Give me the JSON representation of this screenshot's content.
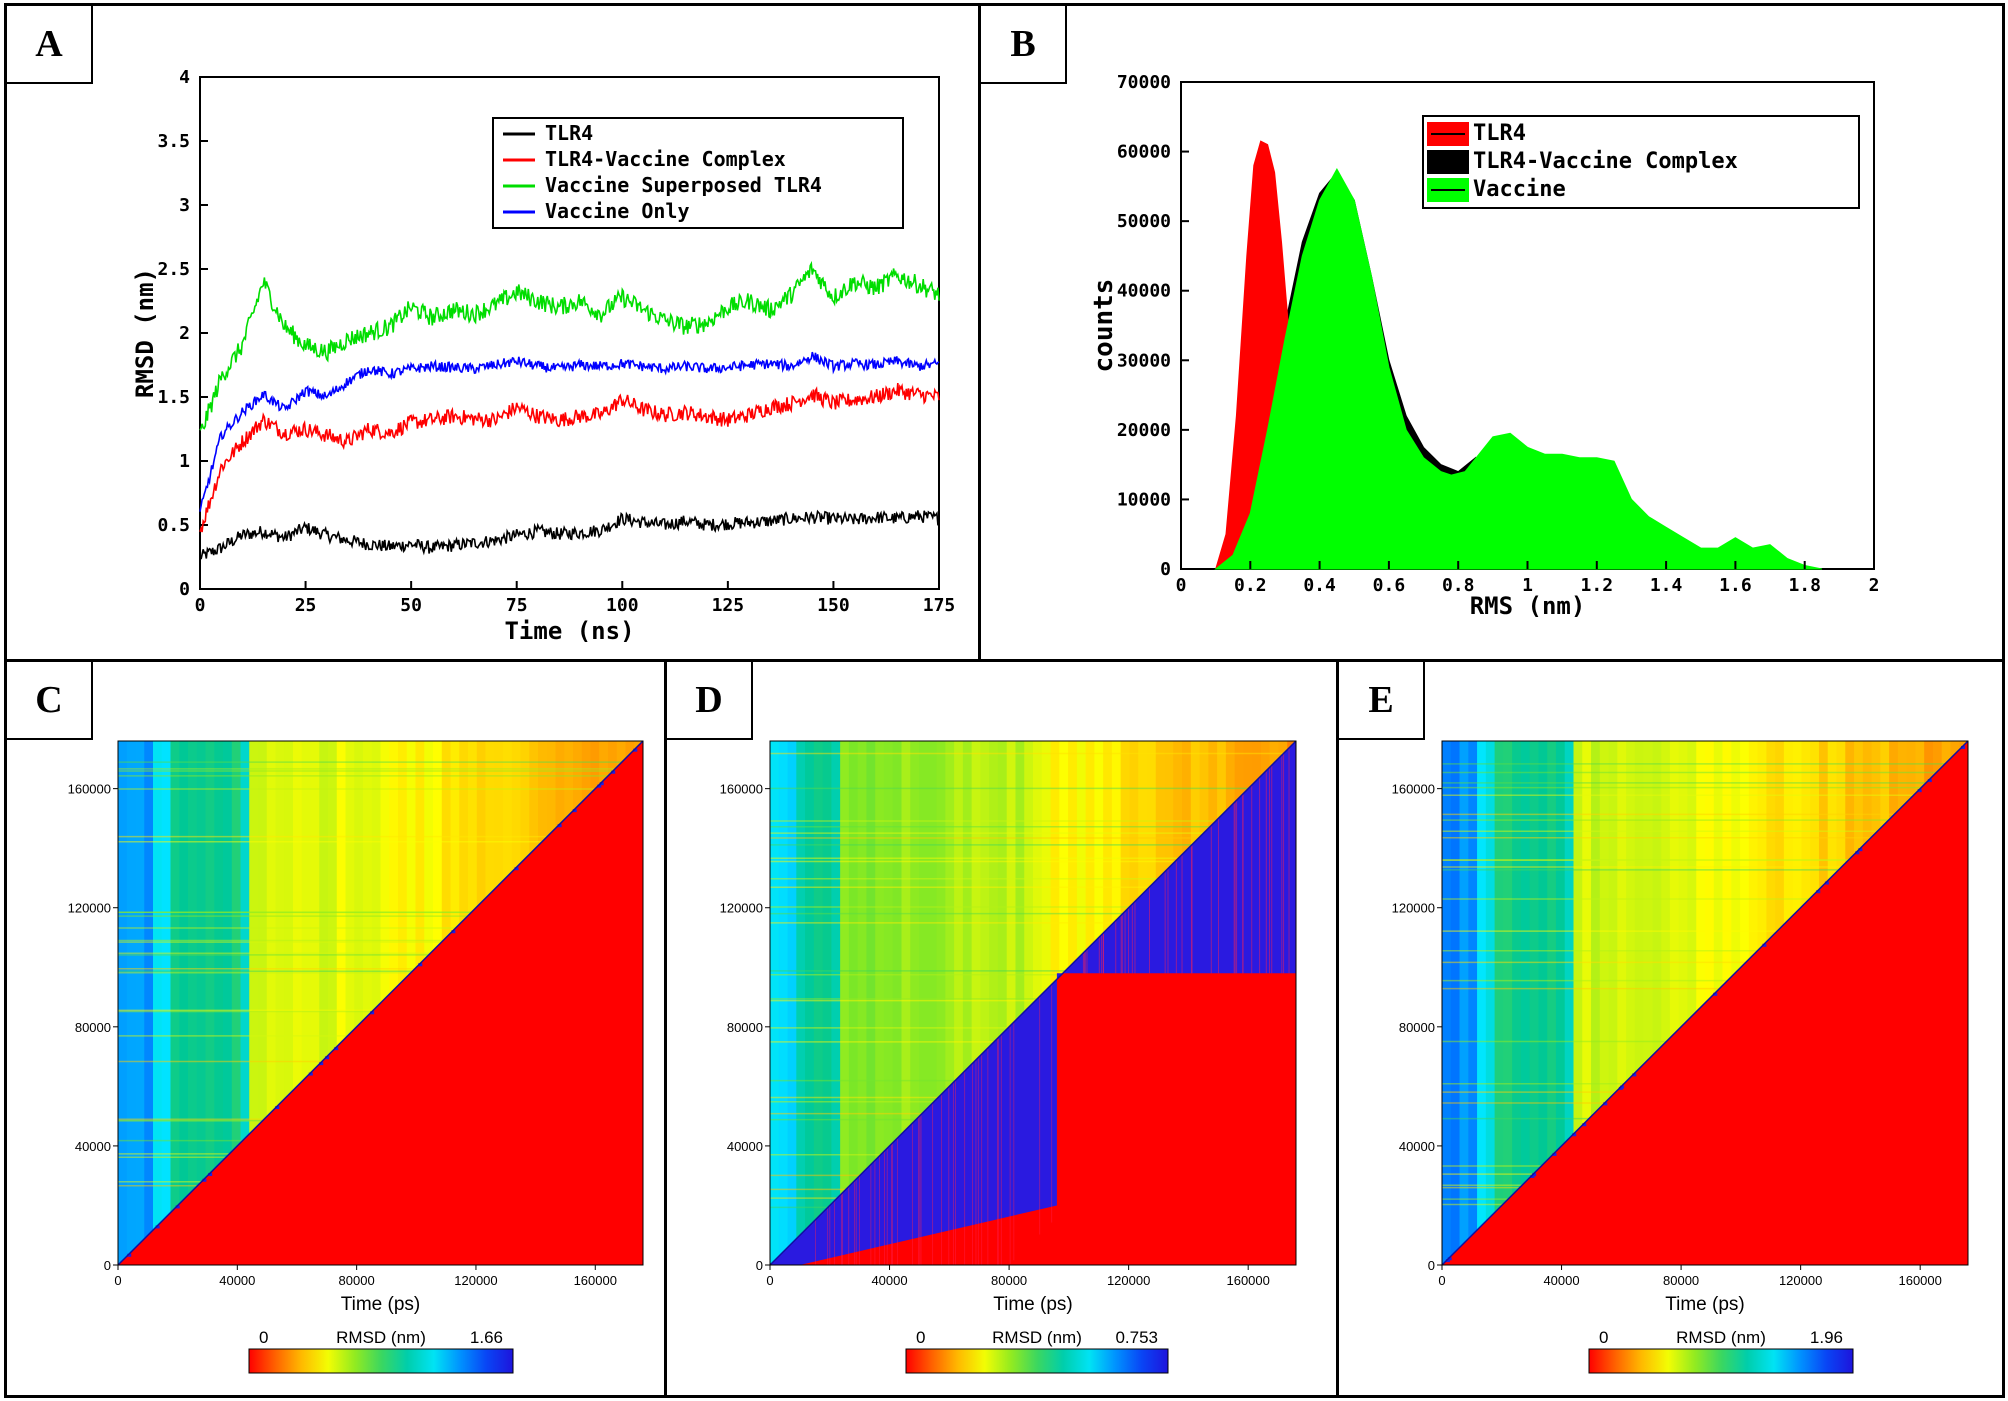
{
  "panels": {
    "a": {
      "label": "A"
    },
    "b": {
      "label": "B"
    },
    "c": {
      "label": "C"
    },
    "d": {
      "label": "D"
    },
    "e": {
      "label": "E"
    }
  },
  "chart_data": [
    {
      "id": "A",
      "type": "line",
      "xlabel": "Time (ns)",
      "ylabel": "RMSD (nm)",
      "xlim": [
        0,
        175
      ],
      "ylim": [
        0,
        4
      ],
      "xticks": [
        "0",
        "25",
        "50",
        "75",
        "100",
        "125",
        "150",
        "175"
      ],
      "yticks": [
        "0",
        "0.5",
        "1",
        "1.5",
        "2",
        "2.5",
        "3",
        "3.5",
        "4"
      ],
      "legend_position": "top-right",
      "series": [
        {
          "name": "TLR4",
          "color": "#000000",
          "x": [
            0,
            5,
            10,
            15,
            20,
            25,
            30,
            35,
            40,
            45,
            50,
            55,
            60,
            65,
            70,
            75,
            80,
            85,
            90,
            95,
            100,
            105,
            110,
            115,
            120,
            125,
            130,
            135,
            140,
            145,
            150,
            155,
            160,
            165,
            170,
            175
          ],
          "y": [
            0.25,
            0.32,
            0.42,
            0.45,
            0.4,
            0.48,
            0.42,
            0.38,
            0.35,
            0.33,
            0.35,
            0.32,
            0.34,
            0.36,
            0.38,
            0.42,
            0.45,
            0.43,
            0.44,
            0.46,
            0.55,
            0.52,
            0.5,
            0.53,
            0.5,
            0.51,
            0.52,
            0.53,
            0.55,
            0.56,
            0.55,
            0.54,
            0.56,
            0.55,
            0.57,
            0.55
          ]
        },
        {
          "name": "TLR4-Vaccine Complex",
          "color": "#ff0000",
          "x": [
            0,
            5,
            10,
            15,
            20,
            25,
            30,
            35,
            40,
            45,
            50,
            55,
            60,
            65,
            70,
            75,
            80,
            85,
            90,
            95,
            100,
            105,
            110,
            115,
            120,
            125,
            130,
            135,
            140,
            145,
            150,
            155,
            160,
            165,
            170,
            175
          ],
          "y": [
            0.45,
            0.95,
            1.15,
            1.32,
            1.22,
            1.25,
            1.2,
            1.15,
            1.25,
            1.22,
            1.3,
            1.32,
            1.35,
            1.33,
            1.32,
            1.42,
            1.35,
            1.32,
            1.35,
            1.36,
            1.48,
            1.4,
            1.36,
            1.38,
            1.35,
            1.32,
            1.36,
            1.42,
            1.45,
            1.52,
            1.45,
            1.48,
            1.5,
            1.55,
            1.52,
            1.5
          ]
        },
        {
          "name": "Vaccine Superposed TLR4",
          "color": "#00dd00",
          "x": [
            0,
            5,
            10,
            15,
            20,
            25,
            30,
            35,
            40,
            45,
            50,
            55,
            60,
            65,
            70,
            75,
            80,
            85,
            90,
            95,
            100,
            105,
            110,
            115,
            120,
            125,
            130,
            135,
            140,
            145,
            150,
            155,
            160,
            165,
            170,
            175
          ],
          "y": [
            1.2,
            1.65,
            1.9,
            2.4,
            2.05,
            1.9,
            1.85,
            1.95,
            2.0,
            2.05,
            2.2,
            2.12,
            2.18,
            2.15,
            2.22,
            2.32,
            2.25,
            2.2,
            2.25,
            2.15,
            2.28,
            2.18,
            2.1,
            2.05,
            2.08,
            2.2,
            2.25,
            2.18,
            2.3,
            2.5,
            2.28,
            2.4,
            2.35,
            2.45,
            2.38,
            2.3
          ]
        },
        {
          "name": "Vaccine Only",
          "color": "#0000ff",
          "x": [
            0,
            5,
            10,
            15,
            20,
            25,
            30,
            35,
            40,
            45,
            50,
            55,
            60,
            65,
            70,
            75,
            80,
            85,
            90,
            95,
            100,
            105,
            110,
            115,
            120,
            125,
            130,
            135,
            140,
            145,
            150,
            155,
            160,
            165,
            170,
            175
          ],
          "y": [
            0.6,
            1.2,
            1.38,
            1.52,
            1.4,
            1.55,
            1.5,
            1.62,
            1.72,
            1.68,
            1.72,
            1.74,
            1.73,
            1.72,
            1.75,
            1.78,
            1.74,
            1.72,
            1.75,
            1.74,
            1.76,
            1.74,
            1.72,
            1.74,
            1.72,
            1.73,
            1.75,
            1.76,
            1.74,
            1.82,
            1.74,
            1.76,
            1.75,
            1.78,
            1.74,
            1.76
          ]
        }
      ]
    },
    {
      "id": "B",
      "type": "area",
      "xlabel": "RMS (nm)",
      "ylabel": "counts",
      "xlim": [
        0,
        2
      ],
      "ylim": [
        0,
        70000
      ],
      "xticks": [
        "0",
        "0.2",
        "0.4",
        "0.6",
        "0.8",
        "1",
        "1.2",
        "1.4",
        "1.6",
        "1.8",
        "2"
      ],
      "yticks": [
        "0",
        "10000",
        "20000",
        "30000",
        "40000",
        "50000",
        "60000",
        "70000"
      ],
      "legend_position": "top-right",
      "series": [
        {
          "name": "TLR4",
          "color": "#ff0000",
          "x": [
            0.1,
            0.13,
            0.16,
            0.19,
            0.21,
            0.23,
            0.25,
            0.27,
            0.29,
            0.31,
            0.33,
            0.36,
            0.4
          ],
          "y": [
            0,
            5000,
            22000,
            45000,
            58000,
            61500,
            61000,
            57000,
            47000,
            35000,
            22000,
            10000,
            2000
          ]
        },
        {
          "name": "TLR4-Vaccine Complex",
          "color": "#000000",
          "x": [
            0.1,
            0.15,
            0.2,
            0.25,
            0.3,
            0.35,
            0.4,
            0.45,
            0.5,
            0.55,
            0.6,
            0.65,
            0.7,
            0.75,
            0.8,
            0.85
          ],
          "y": [
            0,
            3000,
            10000,
            22000,
            35000,
            47000,
            54000,
            57000,
            53000,
            42000,
            30000,
            22000,
            17500,
            15000,
            14000,
            16000
          ]
        },
        {
          "name": "Vaccine",
          "color": "#00ff00",
          "x": [
            0.1,
            0.15,
            0.2,
            0.25,
            0.3,
            0.35,
            0.4,
            0.45,
            0.5,
            0.55,
            0.6,
            0.65,
            0.7,
            0.75,
            0.78,
            0.82,
            0.86,
            0.9,
            0.95,
            1.0,
            1.05,
            1.1,
            1.15,
            1.2,
            1.25,
            1.3,
            1.35,
            1.4,
            1.45,
            1.5,
            1.55,
            1.6,
            1.65,
            1.7,
            1.75,
            1.8,
            1.85
          ],
          "y": [
            0,
            2000,
            8000,
            20000,
            33000,
            45000,
            53000,
            57500,
            53000,
            42000,
            29000,
            20000,
            16000,
            14000,
            13500,
            14000,
            16500,
            19000,
            19500,
            17500,
            16500,
            16500,
            16000,
            16000,
            15500,
            10000,
            7500,
            6000,
            4500,
            3000,
            3000,
            4500,
            3000,
            3500,
            1500,
            500,
            0
          ]
        }
      ]
    },
    {
      "id": "C",
      "type": "heatmap",
      "xlabel": "Time (ps)",
      "ylabel": "",
      "xticks": [
        "0",
        "40000",
        "80000",
        "120000",
        "160000"
      ],
      "yticks": [
        "0",
        "40000",
        "80000",
        "120000",
        "160000"
      ],
      "colorbar": {
        "label": "RMSD (nm)",
        "min": "0",
        "max": "1.66"
      }
    },
    {
      "id": "D",
      "type": "heatmap",
      "xlabel": "Time (ps)",
      "ylabel": "",
      "xticks": [
        "0",
        "40000",
        "80000",
        "120000",
        "160000"
      ],
      "yticks": [
        "0",
        "40000",
        "80000",
        "120000",
        "160000"
      ],
      "colorbar": {
        "label": "RMSD (nm)",
        "min": "0",
        "max": "0.753"
      }
    },
    {
      "id": "E",
      "type": "heatmap",
      "xlabel": "Time (ps)",
      "ylabel": "",
      "xticks": [
        "0",
        "40000",
        "80000",
        "120000",
        "160000"
      ],
      "yticks": [
        "0",
        "40000",
        "80000",
        "120000",
        "160000"
      ],
      "colorbar": {
        "label": "RMSD (nm)",
        "min": "0",
        "max": "1.96"
      }
    }
  ]
}
